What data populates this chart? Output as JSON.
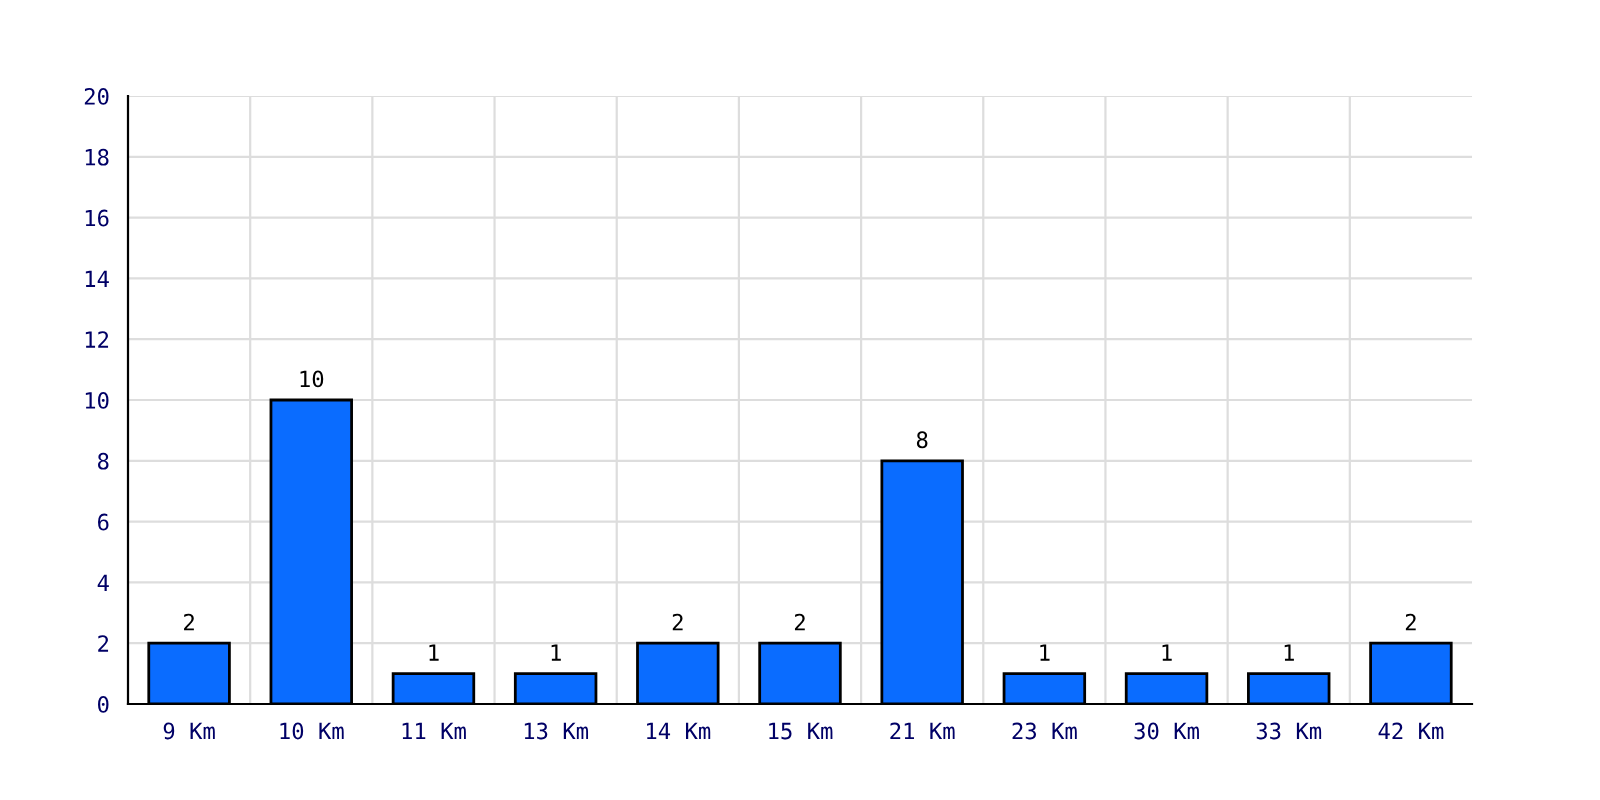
{
  "chart_data": {
    "type": "bar",
    "categories": [
      "9 Km",
      "10 Km",
      "11 Km",
      "13 Km",
      "14 Km",
      "15 Km",
      "21 Km",
      "23 Km",
      "30 Km",
      "33 Km",
      "42 Km"
    ],
    "values": [
      2,
      10,
      1,
      1,
      2,
      2,
      8,
      1,
      1,
      1,
      2
    ],
    "color": "#0a6cff",
    "ylim": [
      0,
      20
    ],
    "yticks": [
      0,
      2,
      4,
      6,
      8,
      10,
      12,
      14,
      16,
      18,
      20
    ],
    "grid": true,
    "data_labels": true
  }
}
